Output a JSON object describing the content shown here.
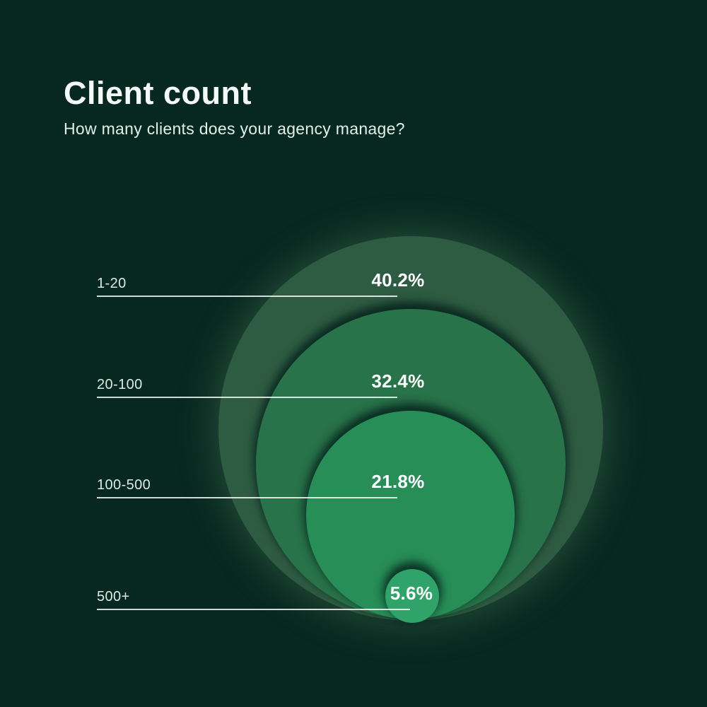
{
  "page": {
    "background_color": "#07281f",
    "text_color": "#f4faf7"
  },
  "header": {
    "title": "Client count",
    "subtitle": "How many clients does your agency manage?"
  },
  "chart_data": {
    "type": "bubble",
    "variant": "nested-circles-bottom-aligned",
    "title": "Client count",
    "subtitle": "How many clients does your agency manage?",
    "categories": [
      "1-20",
      "20-100",
      "100-500",
      "500+"
    ],
    "values": [
      40.2,
      32.4,
      21.8,
      5.6
    ],
    "value_labels": [
      "40.2%",
      "32.4%",
      "21.8%",
      "5.6%"
    ],
    "unit": "%",
    "circle_colors": [
      "#2e5c42",
      "#287349",
      "#278e58",
      "#2fa369"
    ],
    "leader_line_color": "#ffffff",
    "label_color": "#dcebe4",
    "value_label_color": "#ffffff",
    "layout_hints": {
      "radius_proportional_to": "value",
      "alignment": "circles tangent at common bottom point",
      "labels": "left-aligned category labels with horizontal leader lines",
      "value_position": "above right end of leader line"
    }
  }
}
